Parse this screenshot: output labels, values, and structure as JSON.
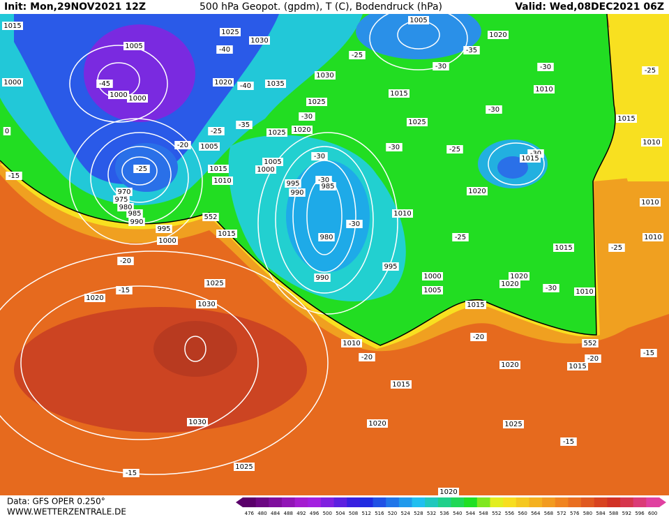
{
  "header": {
    "init": "Init: Mon,29NOV2021 12Z",
    "title": "500 hPa Geopot. (gpdm), T (C), Bodendruck (hPa)",
    "valid": "Valid: Wed,08DEC2021 06Z"
  },
  "footer": {
    "source": "Data: GFS OPER 0.250°",
    "site": "WWW.WETTERZENTRALE.DE"
  },
  "colorbar": {
    "labels": [
      476,
      480,
      484,
      488,
      492,
      496,
      500,
      504,
      508,
      512,
      516,
      520,
      524,
      528,
      532,
      536,
      540,
      544,
      548,
      552,
      556,
      560,
      564,
      568,
      572,
      576,
      580,
      584,
      588,
      592,
      596,
      600
    ]
  },
  "map_labels": [
    1015,
    1005,
    1025,
    1030,
    1005,
    1020,
    -40,
    -25,
    -35,
    -30,
    -30,
    1000,
    -45,
    1000,
    1000,
    1020,
    -40,
    1035,
    1030,
    1015,
    1010,
    -25,
    1025,
    -30,
    1020,
    1025,
    -30,
    1015,
    0,
    -25,
    -35,
    1025,
    -20,
    1005,
    -30,
    -25,
    -30,
    1015,
    1010,
    -15,
    -25,
    1015,
    1005,
    1000,
    -30,
    1010,
    995,
    -30,
    985,
    990,
    1020,
    1010,
    970,
    975,
    980,
    985,
    990,
    552,
    1010,
    -30,
    995,
    1000,
    1015,
    980,
    -25,
    1015,
    1010,
    -25,
    -20,
    995,
    1000,
    1020,
    1020,
    -15,
    1025,
    990,
    1005,
    -30,
    1010,
    1020,
    1030,
    1015,
    -20,
    1010,
    -20,
    552,
    -15,
    1020,
    1015,
    -20,
    1015,
    1030,
    1020,
    1025,
    -15,
    1025,
    -15,
    1020
  ]
}
